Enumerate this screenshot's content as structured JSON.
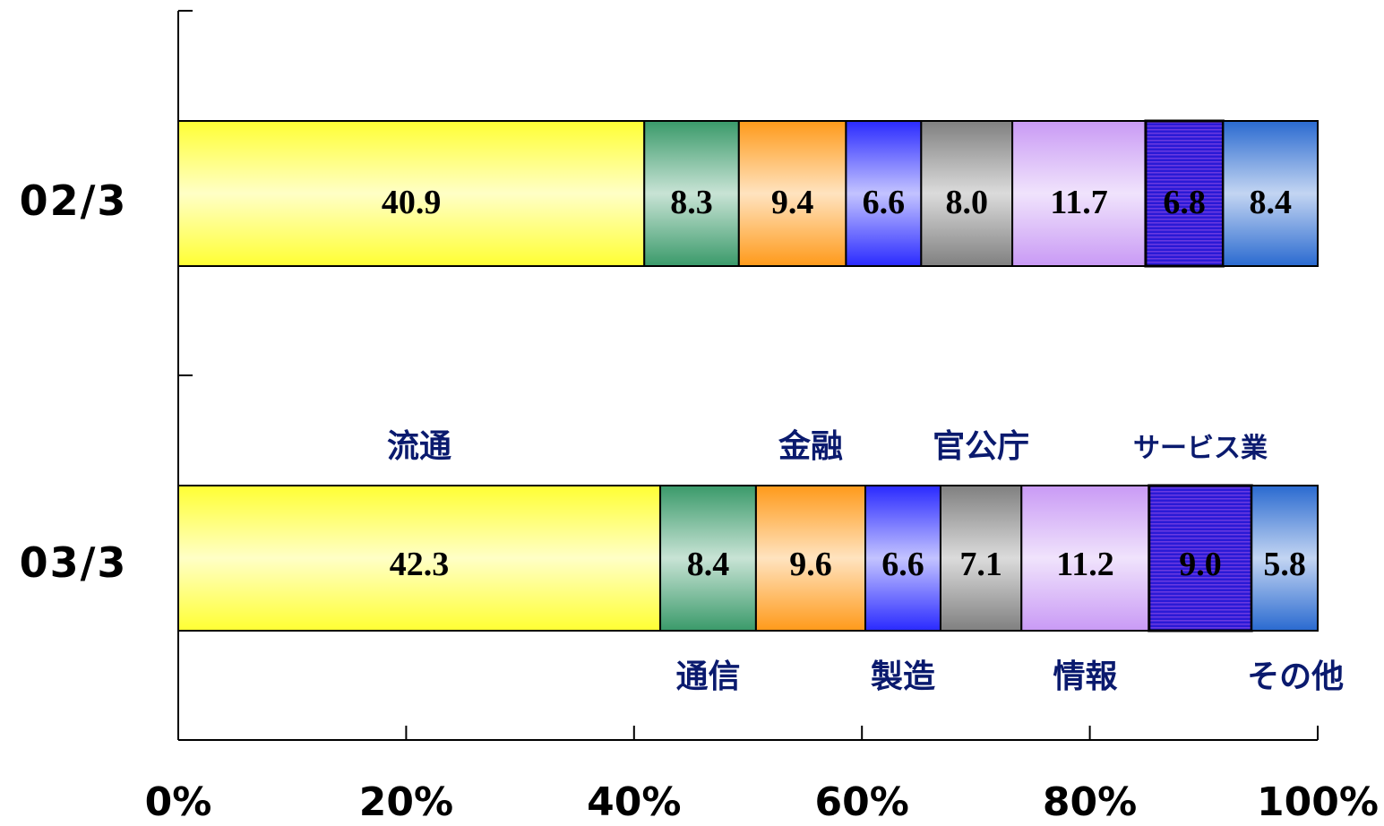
{
  "chart_data": {
    "type": "bar",
    "orientation": "horizontal",
    "stacked": "percent",
    "categories": [
      "02/3",
      "03/3"
    ],
    "series": [
      {
        "name": "流通",
        "values": [
          40.9,
          42.3
        ],
        "color": "#ffff33"
      },
      {
        "name": "通信",
        "values": [
          8.3,
          8.4
        ],
        "color": "#3a9a6a"
      },
      {
        "name": "金融",
        "values": [
          9.4,
          9.6
        ],
        "color": "#ff9a1a"
      },
      {
        "name": "製造",
        "values": [
          6.6,
          6.6
        ],
        "color": "#2a2aff"
      },
      {
        "name": "官公庁",
        "values": [
          8.0,
          7.1
        ],
        "color": "#808080"
      },
      {
        "name": "情報",
        "values": [
          11.7,
          11.2
        ],
        "color": "#c99af5"
      },
      {
        "name": "サービス業",
        "values": [
          6.8,
          9.0
        ],
        "color": "#2a1ad6"
      },
      {
        "name": "その他",
        "values": [
          8.4,
          5.8
        ],
        "color": "#2a6ad0"
      }
    ],
    "xticks": [
      "0%",
      "20%",
      "40%",
      "60%",
      "80%",
      "100%"
    ],
    "xlim": [
      0,
      100
    ],
    "title": "",
    "xlabel": "",
    "ylabel": "",
    "grid": false,
    "legend": "inline-labels"
  }
}
